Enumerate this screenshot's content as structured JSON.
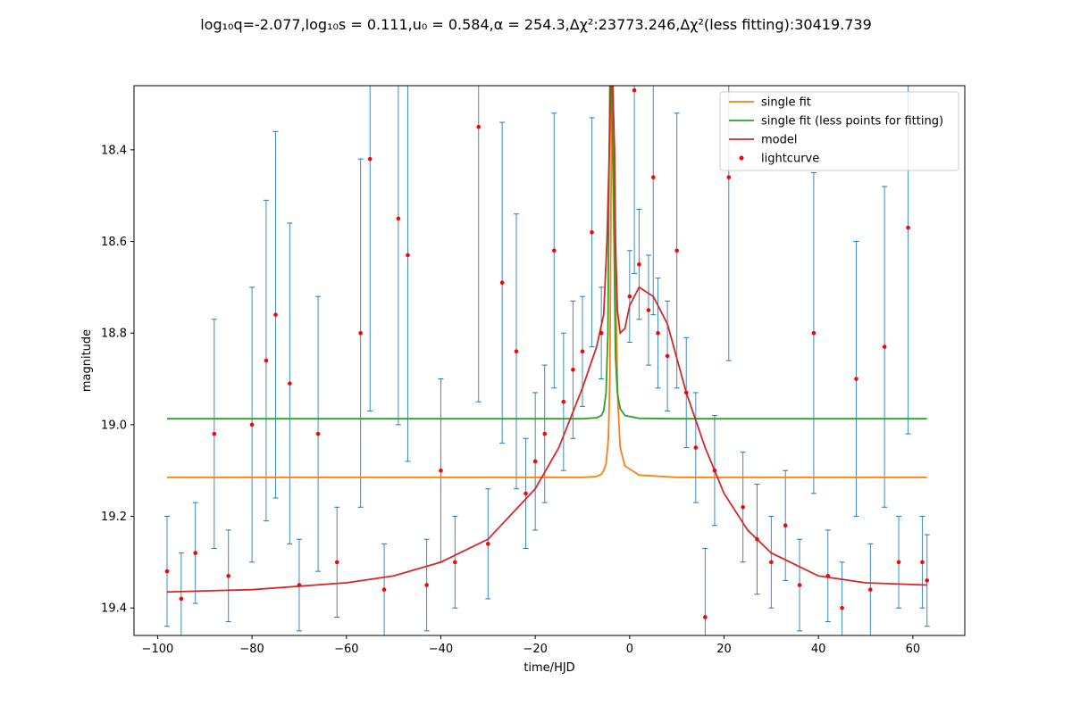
{
  "chart_data": {
    "type": "scatter",
    "title": "log₁₀q=-2.077,log₁₀s = 0.111,u₀ = 0.584,α = 254.3,Δχ²:23773.246,Δχ²(less fitting):30419.739",
    "xlabel": "time/HJD",
    "ylabel": "magnitude",
    "xlim": [
      -105,
      71
    ],
    "ylim": [
      19.46,
      18.26
    ],
    "y_inverted": true,
    "xticks": [
      -100,
      -80,
      -60,
      -40,
      -20,
      0,
      20,
      40,
      60
    ],
    "xtick_labels": [
      "−100",
      "−80",
      "−60",
      "−40",
      "−20",
      "0",
      "20",
      "40",
      "60"
    ],
    "yticks": [
      18.4,
      18.6,
      18.8,
      19.0,
      19.2,
      19.4
    ],
    "ytick_labels": [
      "18.4",
      "18.6",
      "18.8",
      "19.0",
      "19.2",
      "19.4"
    ],
    "grid": false,
    "legend_position": "top-right",
    "legend": [
      {
        "label": "single fit",
        "color": "#ff7f0e",
        "kind": "line"
      },
      {
        "label": "single fit (less points for fitting)",
        "color": "#2ca02c",
        "kind": "line"
      },
      {
        "label": "model",
        "color": "#d62728",
        "kind": "line"
      },
      {
        "label": "lightcurve",
        "color": "#ff0000",
        "kind": "marker"
      }
    ],
    "series": [
      {
        "name": "single fit",
        "color": "#ff7f0e",
        "kind": "line",
        "x": [
          -98,
          -30,
          -10,
          -7,
          -6,
          -5.5,
          -5,
          -4.5,
          -4.2,
          -4,
          -3.8,
          -3.5,
          -3,
          -2.5,
          -2,
          -1,
          2,
          10,
          30,
          63
        ],
        "y": [
          19.115,
          19.115,
          19.115,
          19.113,
          19.108,
          19.1,
          19.085,
          19.03,
          18.9,
          18.6,
          18.26,
          18.26,
          18.7,
          18.95,
          19.05,
          19.09,
          19.11,
          19.115,
          19.115,
          19.115
        ]
      },
      {
        "name": "single fit (less points for fitting)",
        "color": "#2ca02c",
        "kind": "line",
        "x": [
          -98,
          -30,
          -10,
          -7,
          -6,
          -5.5,
          -5,
          -4.6,
          -4.4,
          -4.2,
          -3.8,
          -3.3,
          -3,
          -2.6,
          -2,
          -1,
          2,
          10,
          30,
          63
        ],
        "y": [
          18.987,
          18.987,
          18.987,
          18.985,
          18.98,
          18.97,
          18.93,
          18.8,
          18.5,
          18.26,
          18.26,
          18.6,
          18.85,
          18.93,
          18.965,
          18.98,
          18.986,
          18.987,
          18.987,
          18.987
        ]
      },
      {
        "name": "model",
        "color": "#d62728",
        "kind": "line",
        "x": [
          -98,
          -80,
          -60,
          -50,
          -40,
          -30,
          -20,
          -15,
          -10,
          -7,
          -5.5,
          -4.8,
          -4.3,
          -4,
          -3.6,
          -3.2,
          -3,
          -2.6,
          -2,
          -1,
          0,
          2,
          5,
          8,
          12,
          16,
          20,
          25,
          30,
          40,
          50,
          63
        ],
        "y": [
          19.365,
          19.36,
          19.345,
          19.33,
          19.3,
          19.25,
          19.14,
          19.05,
          18.92,
          18.83,
          18.76,
          18.6,
          18.4,
          18.26,
          18.26,
          18.4,
          18.6,
          18.75,
          18.8,
          18.79,
          18.74,
          18.7,
          18.72,
          18.78,
          18.93,
          19.05,
          19.15,
          19.23,
          19.28,
          19.33,
          19.345,
          19.35
        ]
      }
    ],
    "lightcurve": {
      "name": "lightcurve",
      "color": "#ff0000",
      "errorbar_color": "#1f77b4",
      "points": [
        {
          "x": -98,
          "y": 19.32,
          "err": 0.12
        },
        {
          "x": -95,
          "y": 19.38,
          "err": 0.1
        },
        {
          "x": -92,
          "y": 19.28,
          "err": 0.11
        },
        {
          "x": -88,
          "y": 19.02,
          "err": 0.25
        },
        {
          "x": -85,
          "y": 19.33,
          "err": 0.1
        },
        {
          "x": -80,
          "y": 19.0,
          "err": 0.3
        },
        {
          "x": -77,
          "y": 18.86,
          "err": 0.35
        },
        {
          "x": -75,
          "y": 18.76,
          "err": 0.4
        },
        {
          "x": -72,
          "y": 18.91,
          "err": 0.35
        },
        {
          "x": -70,
          "y": 19.35,
          "err": 0.1
        },
        {
          "x": -66,
          "y": 19.02,
          "err": 0.3
        },
        {
          "x": -62,
          "y": 19.3,
          "err": 0.12
        },
        {
          "x": -57,
          "y": 18.8,
          "err": 0.38
        },
        {
          "x": -55,
          "y": 18.42,
          "err": 0.55
        },
        {
          "x": -52,
          "y": 19.36,
          "err": 0.1
        },
        {
          "x": -49,
          "y": 18.55,
          "err": 0.45
        },
        {
          "x": -47,
          "y": 18.63,
          "err": 0.45
        },
        {
          "x": -43,
          "y": 19.35,
          "err": 0.1
        },
        {
          "x": -40,
          "y": 19.1,
          "err": 0.2
        },
        {
          "x": -37,
          "y": 19.3,
          "err": 0.1
        },
        {
          "x": -32,
          "y": 18.35,
          "err": 0.6
        },
        {
          "x": -30,
          "y": 19.26,
          "err": 0.12
        },
        {
          "x": -27,
          "y": 18.69,
          "err": 0.35
        },
        {
          "x": -24,
          "y": 18.84,
          "err": 0.3
        },
        {
          "x": -22,
          "y": 19.15,
          "err": 0.12
        },
        {
          "x": -20,
          "y": 19.08,
          "err": 0.15
        },
        {
          "x": -18,
          "y": 19.02,
          "err": 0.15
        },
        {
          "x": -16,
          "y": 18.62,
          "err": 0.3
        },
        {
          "x": -14,
          "y": 18.95,
          "err": 0.15
        },
        {
          "x": -12,
          "y": 18.88,
          "err": 0.15
        },
        {
          "x": -10,
          "y": 18.84,
          "err": 0.12
        },
        {
          "x": -8,
          "y": 18.58,
          "err": 0.25
        },
        {
          "x": -6,
          "y": 18.8,
          "err": 0.1
        },
        {
          "x": 0,
          "y": 18.72,
          "err": 0.1
        },
        {
          "x": 1,
          "y": 18.27,
          "err": 0.4
        },
        {
          "x": 2,
          "y": 18.65,
          "err": 0.12
        },
        {
          "x": 4,
          "y": 18.75,
          "err": 0.12
        },
        {
          "x": 5,
          "y": 18.46,
          "err": 0.3
        },
        {
          "x": 6,
          "y": 18.8,
          "err": 0.12
        },
        {
          "x": 8,
          "y": 18.85,
          "err": 0.12
        },
        {
          "x": 10,
          "y": 18.62,
          "err": 0.3
        },
        {
          "x": 12,
          "y": 18.93,
          "err": 0.12
        },
        {
          "x": 14,
          "y": 19.05,
          "err": 0.12
        },
        {
          "x": 16,
          "y": 19.42,
          "err": 0.15
        },
        {
          "x": 18,
          "y": 19.1,
          "err": 0.12
        },
        {
          "x": 21,
          "y": 18.46,
          "err": 0.4
        },
        {
          "x": 24,
          "y": 19.18,
          "err": 0.12
        },
        {
          "x": 27,
          "y": 19.25,
          "err": 0.12
        },
        {
          "x": 30,
          "y": 19.3,
          "err": 0.1
        },
        {
          "x": 33,
          "y": 19.22,
          "err": 0.12
        },
        {
          "x": 36,
          "y": 19.35,
          "err": 0.1
        },
        {
          "x": 39,
          "y": 18.8,
          "err": 0.35
        },
        {
          "x": 42,
          "y": 19.33,
          "err": 0.1
        },
        {
          "x": 45,
          "y": 19.4,
          "err": 0.1
        },
        {
          "x": 48,
          "y": 18.9,
          "err": 0.3
        },
        {
          "x": 51,
          "y": 19.36,
          "err": 0.1
        },
        {
          "x": 54,
          "y": 18.83,
          "err": 0.35
        },
        {
          "x": 57,
          "y": 19.3,
          "err": 0.1
        },
        {
          "x": 59,
          "y": 18.57,
          "err": 0.45
        },
        {
          "x": 62,
          "y": 19.3,
          "err": 0.1
        },
        {
          "x": 63,
          "y": 19.34,
          "err": 0.1
        }
      ]
    }
  }
}
